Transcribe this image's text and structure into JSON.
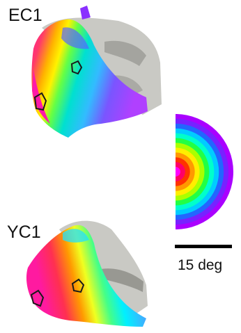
{
  "panels": {
    "top_label": "EC1",
    "bottom_label": "YC1"
  },
  "scale": {
    "label": "15 deg"
  },
  "colors": {
    "background": "#ffffff",
    "cortex_gray": "#c9c9c4",
    "cortex_dark": "#8f8f8a",
    "roi_outline": "#1a1a1a",
    "scale_bar": "#000000"
  },
  "eccentricity_legend": {
    "type": "half-disc",
    "ring_colors": [
      "#ff00ff",
      "#ff0066",
      "#ff3300",
      "#ff9900",
      "#ffee00",
      "#aaff00",
      "#22ff44",
      "#00ffcc",
      "#00ccff",
      "#2266ff",
      "#7722ff",
      "#aa00ff"
    ]
  }
}
